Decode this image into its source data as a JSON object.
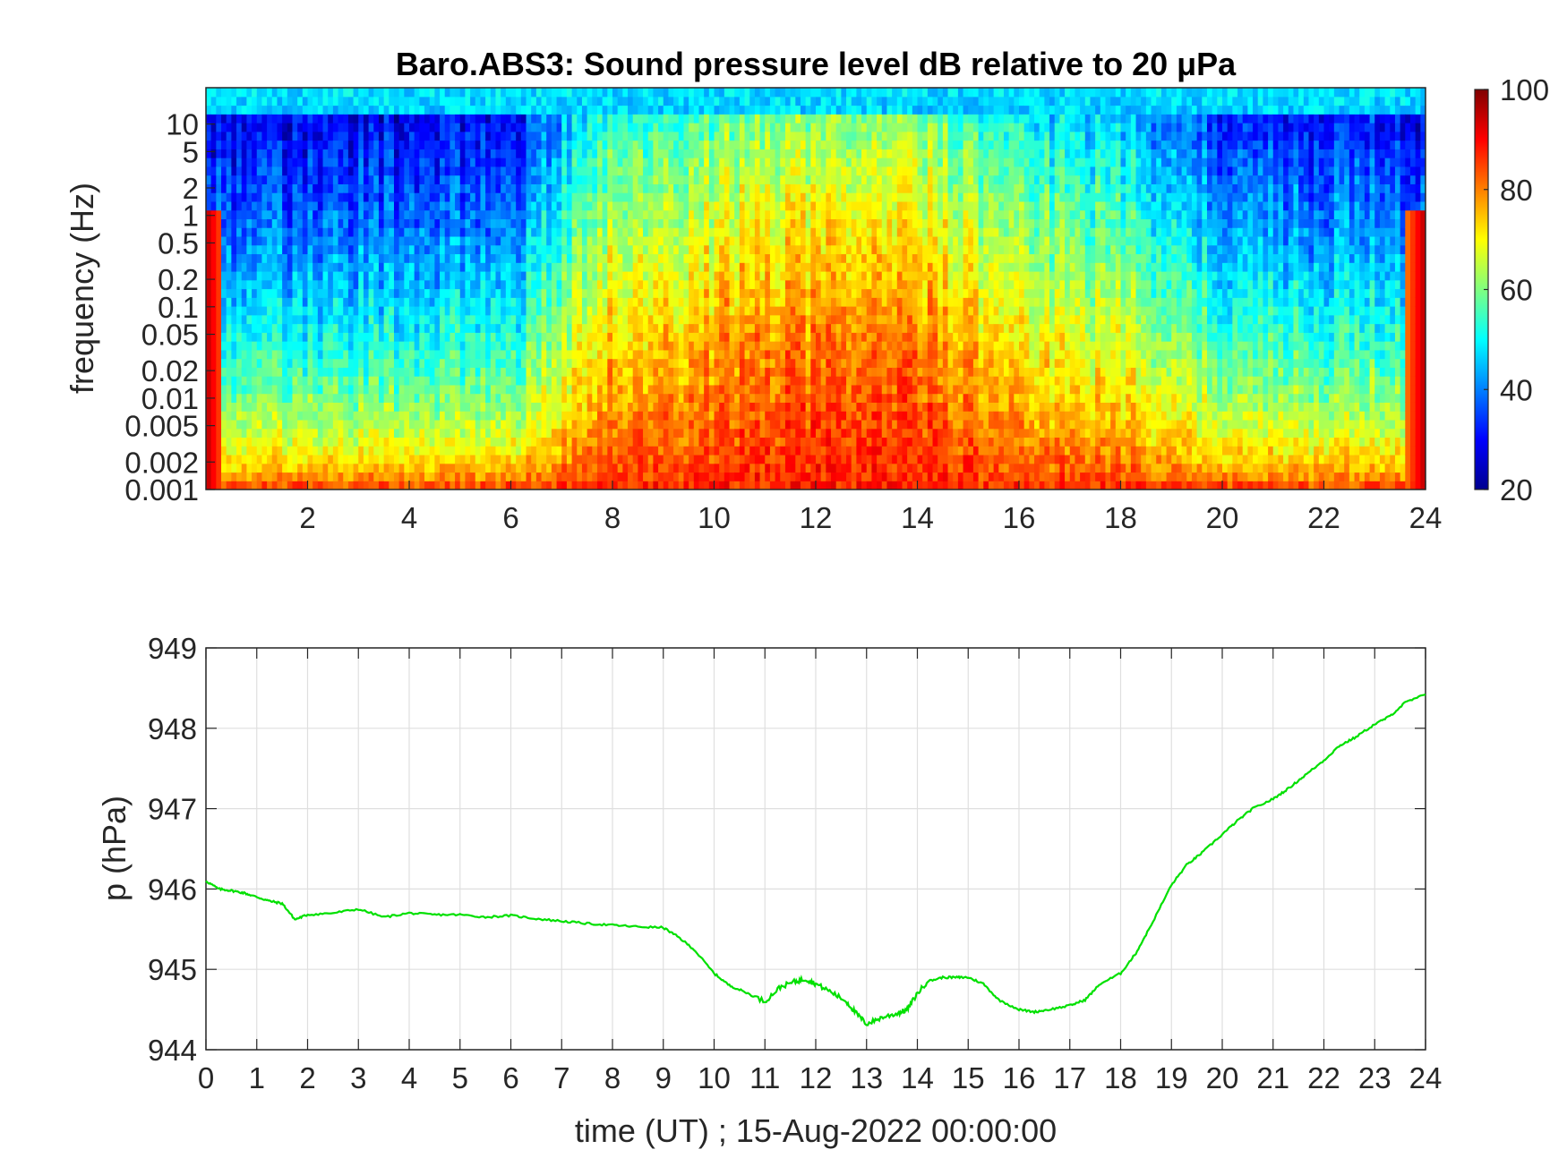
{
  "figure": {
    "title": "Baro.ABS3: Sound pressure level dB relative to 20 μPa",
    "colors": {
      "background": "#ffffff",
      "axes": "#262626",
      "grid": "#dfdfdf",
      "line": "#00e000"
    }
  },
  "chart_data": [
    {
      "type": "heatmap",
      "title": "Baro.ABS3: Sound pressure level dB relative to 20 μPa",
      "xlabel": "",
      "ylabel": "frequency (Hz)",
      "xlim": [
        0,
        24
      ],
      "x_ticks": [
        2,
        4,
        6,
        8,
        10,
        12,
        14,
        16,
        18,
        20,
        22,
        24
      ],
      "y_scale": "log",
      "ylim": [
        0.001,
        25
      ],
      "y_ticks": [
        0.001,
        0.002,
        0.005,
        0.01,
        0.02,
        0.05,
        0.1,
        0.2,
        0.5,
        1,
        2,
        5,
        10
      ],
      "y_tick_labels": [
        "0.001",
        "0.002",
        "0.005",
        "0.01",
        "0.02",
        "0.05",
        "0.1",
        "0.2",
        "0.5",
        "1",
        "2",
        "5",
        "10"
      ],
      "colormap": "jet",
      "colorbar": {
        "range": [
          20,
          100
        ],
        "ticks": [
          20,
          40,
          60,
          80,
          100
        ]
      },
      "activity_profile": {
        "description_hours": [
          0,
          1,
          2,
          3,
          4,
          5,
          6,
          6.5,
          7,
          7.5,
          8,
          9,
          10,
          11,
          12,
          13,
          13.5,
          14,
          15,
          16,
          17,
          18,
          19,
          20,
          21,
          22,
          23,
          24
        ],
        "relative_intensity": [
          0.1,
          0.1,
          0.1,
          0.1,
          0.12,
          0.12,
          0.1,
          0.35,
          0.45,
          0.6,
          0.75,
          0.8,
          0.85,
          0.9,
          0.95,
          1.0,
          1.0,
          0.95,
          0.8,
          0.65,
          0.6,
          0.55,
          0.4,
          0.25,
          0.2,
          0.2,
          0.2,
          0.1
        ]
      }
    },
    {
      "type": "line",
      "title": "",
      "xlabel": "time (UT) ; 15-Aug-2022 00:00:00",
      "ylabel": "p (hPa)",
      "xlim": [
        0,
        24
      ],
      "ylim": [
        944,
        949
      ],
      "x_ticks": [
        0,
        1,
        2,
        3,
        4,
        5,
        6,
        7,
        8,
        9,
        10,
        11,
        12,
        13,
        14,
        15,
        16,
        17,
        18,
        19,
        20,
        21,
        22,
        23,
        24
      ],
      "y_ticks": [
        944,
        945,
        946,
        947,
        948,
        949
      ],
      "grid": true,
      "series": [
        {
          "color": "#00e000",
          "x": [
            0,
            0.25,
            0.5,
            0.75,
            1,
            1.25,
            1.5,
            1.75,
            2,
            2.5,
            3,
            3.5,
            4,
            4.5,
            5,
            5.5,
            6,
            6.5,
            7,
            7.5,
            8,
            8.5,
            9,
            9.3,
            9.6,
            10,
            10.3,
            10.6,
            11,
            11.3,
            11.6,
            11.8,
            12,
            12.3,
            12.6,
            12.8,
            13,
            13.3,
            13.6,
            13.8,
            14,
            14.2,
            14.5,
            14.8,
            15,
            15.3,
            15.6,
            16,
            16.3,
            16.6,
            17,
            17.3,
            17.6,
            18,
            18.3,
            18.6,
            19,
            19.3,
            19.6,
            20,
            20.3,
            20.6,
            21,
            21.3,
            21.6,
            22,
            22.3,
            22.6,
            23,
            23.3,
            23.6,
            24
          ],
          "y": [
            946.1,
            946.0,
            945.98,
            945.95,
            945.9,
            945.85,
            945.82,
            945.62,
            945.68,
            945.7,
            945.75,
            945.65,
            945.7,
            945.68,
            945.68,
            945.65,
            945.67,
            945.63,
            945.6,
            945.57,
            945.55,
            945.53,
            945.52,
            945.4,
            945.25,
            944.95,
            944.8,
            944.72,
            944.6,
            944.78,
            944.85,
            944.88,
            944.82,
            944.72,
            944.6,
            944.45,
            944.32,
            944.4,
            944.45,
            944.5,
            944.7,
            944.85,
            944.9,
            944.9,
            944.9,
            944.82,
            944.62,
            944.5,
            944.47,
            944.5,
            944.55,
            944.62,
            944.82,
            944.95,
            945.2,
            945.55,
            946.05,
            946.3,
            946.45,
            946.68,
            946.85,
            947.0,
            947.12,
            947.25,
            947.4,
            947.6,
            947.78,
            947.88,
            948.05,
            948.15,
            948.32,
            948.42
          ]
        }
      ]
    }
  ]
}
